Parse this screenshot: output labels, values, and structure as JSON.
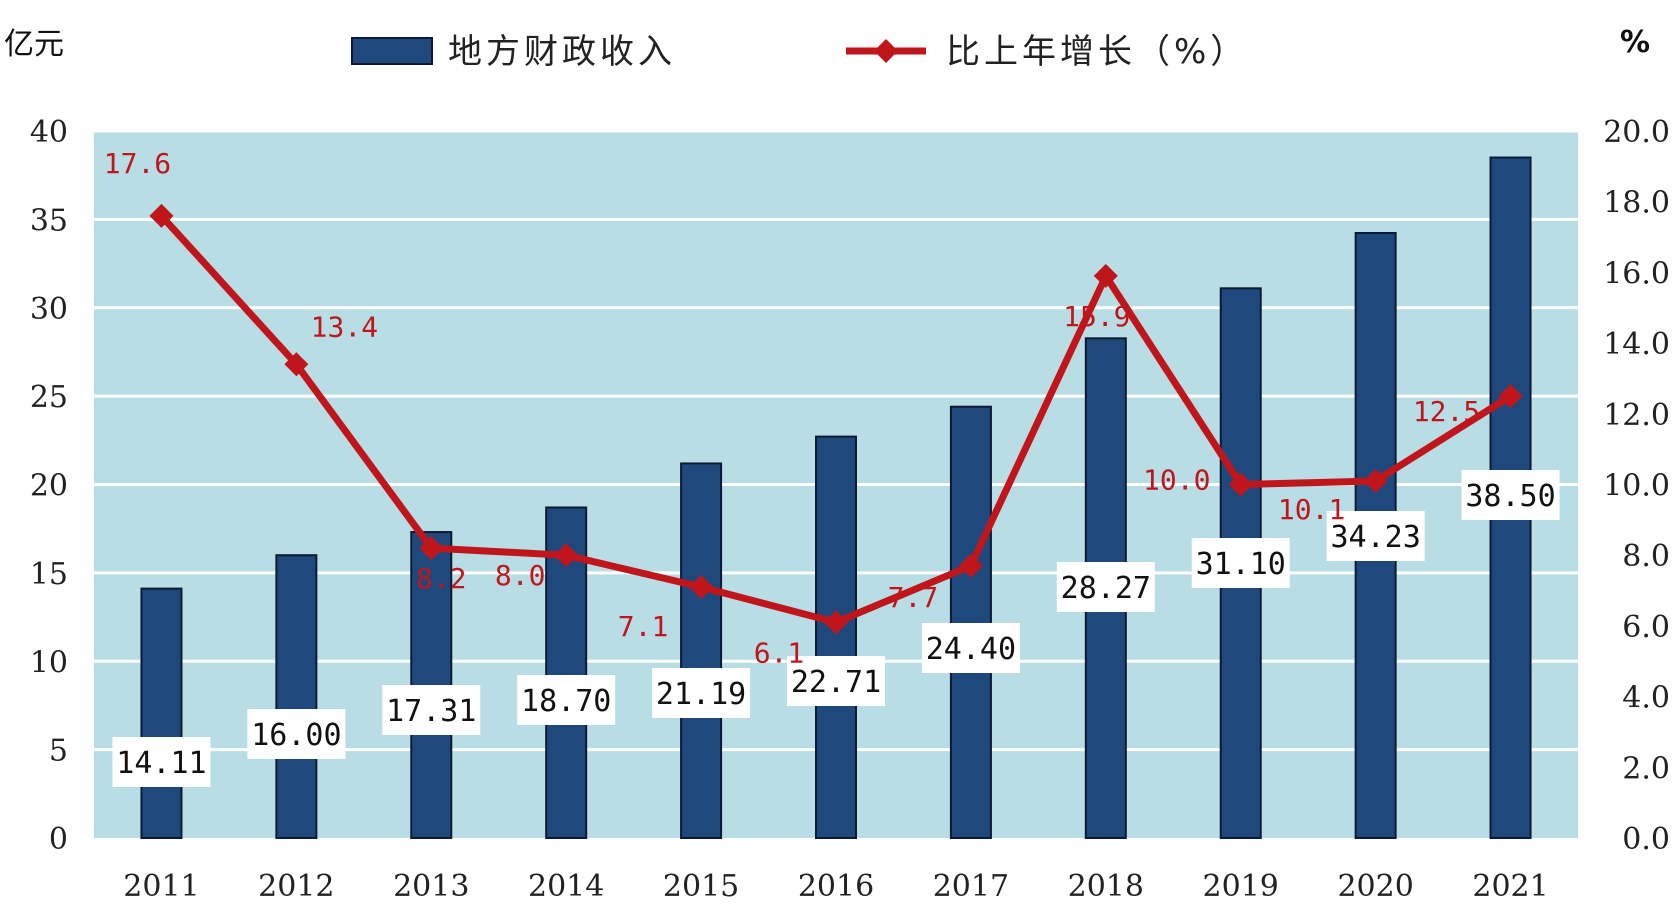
{
  "chart_data": {
    "type": "bar",
    "categories": [
      "2011",
      "2012",
      "2013",
      "2014",
      "2015",
      "2016",
      "2017",
      "2018",
      "2019",
      "2020",
      "2021"
    ],
    "series": [
      {
        "name": "地方财政收入",
        "type": "bar",
        "axis": "left",
        "values": [
          14.11,
          16.0,
          17.31,
          18.7,
          21.19,
          22.71,
          24.4,
          28.27,
          31.1,
          34.23,
          38.5
        ],
        "labels": [
          "14.11",
          "16.00",
          "17.31",
          "18.70",
          "21.19",
          "22.71",
          "24.40",
          "28.27",
          "31.10",
          "34.23",
          "38.50"
        ]
      },
      {
        "name": "比上年增长（%）",
        "type": "line",
        "axis": "right",
        "values": [
          17.6,
          13.4,
          8.2,
          8.0,
          7.1,
          6.1,
          7.7,
          15.9,
          10.0,
          10.1,
          12.5
        ],
        "labels": [
          "17.6",
          "13.4",
          "8.2",
          "8.0",
          "7.1",
          "6.1",
          "7.7",
          "15.9",
          "10.0",
          "10.1",
          "12.5"
        ]
      }
    ],
    "y_left": {
      "unit_label": "亿元",
      "ylim": [
        0,
        40
      ],
      "ticks": [
        "0",
        "5",
        "10",
        "15",
        "20",
        "25",
        "30",
        "35",
        "40"
      ]
    },
    "y_right": {
      "unit_label": "%",
      "ylim": [
        0,
        20
      ],
      "ticks": [
        "0.0",
        "2.0",
        "4.0",
        "6.0",
        "8.0",
        "10.0",
        "12.0",
        "14.0",
        "16.0",
        "18.0",
        "20.0"
      ]
    },
    "grid": true,
    "legend_position": "top",
    "colors": {
      "plot_background": "#b8dde5",
      "grid": "#ffffff",
      "bar_fill": "#1f497d",
      "bar_stroke": "#0b1a33",
      "line": "#c0161b",
      "line_label": "#c0161b"
    }
  }
}
